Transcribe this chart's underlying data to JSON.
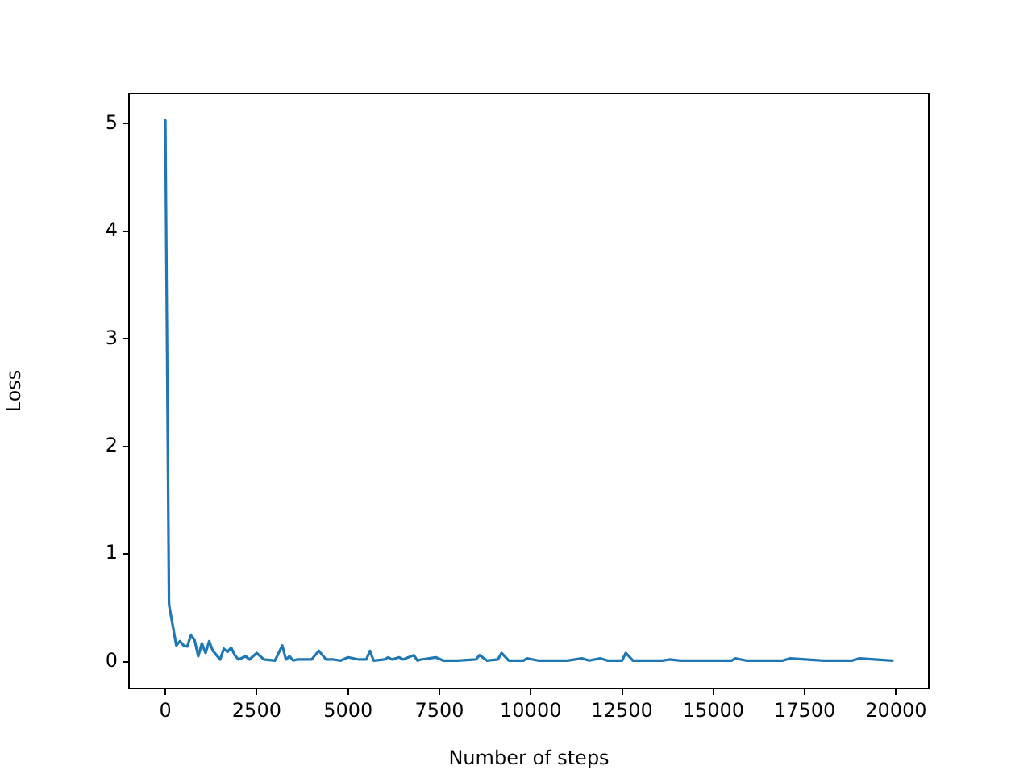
{
  "chart_data": {
    "type": "line",
    "xlabel": "Number of steps",
    "ylabel": "Loss",
    "x": [
      0,
      100,
      300,
      400,
      500,
      600,
      700,
      800,
      900,
      1000,
      1100,
      1200,
      1300,
      1400,
      1500,
      1600,
      1700,
      1800,
      1900,
      2000,
      2200,
      2300,
      2500,
      2700,
      3000,
      3200,
      3300,
      3400,
      3500,
      3600,
      4000,
      4200,
      4400,
      4600,
      4800,
      5000,
      5300,
      5500,
      5600,
      5700,
      6000,
      6100,
      6200,
      6400,
      6500,
      6800,
      6900,
      7000,
      7400,
      7600,
      8000,
      8500,
      8600,
      8800,
      9100,
      9200,
      9400,
      9800,
      9900,
      10200,
      11000,
      11400,
      11600,
      11900,
      12100,
      12500,
      12600,
      12800,
      13600,
      13800,
      14100,
      14400,
      15000,
      15500,
      15600,
      15900,
      16900,
      17100,
      18000,
      18800,
      19000,
      19900
    ],
    "series": [
      {
        "color": "#1f77b4",
        "values": [
          5.03,
          0.53,
          0.15,
          0.19,
          0.15,
          0.14,
          0.25,
          0.2,
          0.05,
          0.17,
          0.08,
          0.19,
          0.1,
          0.06,
          0.02,
          0.12,
          0.09,
          0.13,
          0.06,
          0.02,
          0.05,
          0.02,
          0.08,
          0.02,
          0.01,
          0.15,
          0.02,
          0.05,
          0.01,
          0.02,
          0.02,
          0.1,
          0.02,
          0.02,
          0.01,
          0.04,
          0.02,
          0.02,
          0.1,
          0.01,
          0.02,
          0.04,
          0.02,
          0.04,
          0.02,
          0.06,
          0.01,
          0.02,
          0.04,
          0.01,
          0.01,
          0.02,
          0.06,
          0.01,
          0.02,
          0.08,
          0.01,
          0.01,
          0.03,
          0.01,
          0.01,
          0.03,
          0.01,
          0.03,
          0.01,
          0.01,
          0.08,
          0.01,
          0.01,
          0.02,
          0.01,
          0.01,
          0.01,
          0.01,
          0.03,
          0.01,
          0.01,
          0.03,
          0.01,
          0.01,
          0.03,
          0.01
        ]
      }
    ],
    "xlim": [
      -995,
      20895
    ],
    "xticks": [
      0,
      2500,
      5000,
      7500,
      10000,
      12500,
      15000,
      17500,
      20000
    ],
    "ylim": [
      -0.25,
      5.28
    ],
    "yticks": [
      0,
      1,
      2,
      3,
      4,
      5
    ],
    "grid": false,
    "legend": false,
    "marker": "none",
    "line_style": "solid"
  }
}
